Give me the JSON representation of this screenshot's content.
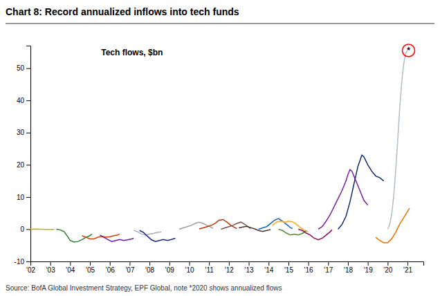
{
  "chart_data": {
    "type": "line",
    "title": "Chart 8: Record annualized inflows into tech funds",
    "subtitle": "Tech flows, $bn",
    "source": "Source: BofA Global Investment Strategy, EPF Global, note *2020  shows annualized  flows",
    "xlim": [
      2002,
      2021.8
    ],
    "ylim": [
      -10,
      57
    ],
    "yticks": [
      -10,
      0,
      10,
      20,
      30,
      40,
      50
    ],
    "xticks": [
      {
        "value": 2002,
        "label": "'02"
      },
      {
        "value": 2003,
        "label": "'03"
      },
      {
        "value": 2004,
        "label": "'04"
      },
      {
        "value": 2005,
        "label": "'05"
      },
      {
        "value": 2006,
        "label": "'06"
      },
      {
        "value": 2007,
        "label": "'07"
      },
      {
        "value": 2008,
        "label": "'08"
      },
      {
        "value": 2009,
        "label": "'09"
      },
      {
        "value": 2010,
        "label": "'10"
      },
      {
        "value": 2011,
        "label": "'11"
      },
      {
        "value": 2012,
        "label": "'12"
      },
      {
        "value": 2013,
        "label": "'13"
      },
      {
        "value": 2014,
        "label": "'14"
      },
      {
        "value": 2015,
        "label": "'15"
      },
      {
        "value": 2016,
        "label": "'16"
      },
      {
        "value": 2017,
        "label": "'17"
      },
      {
        "value": 2018,
        "label": "'18"
      },
      {
        "value": 2019,
        "label": "'19"
      },
      {
        "value": 2020,
        "label": "'20"
      },
      {
        "value": 2021,
        "label": "'21"
      }
    ],
    "grid": false,
    "annotations": [
      {
        "text": "*",
        "x": 2021.05,
        "y": 55.5,
        "color": "red"
      }
    ],
    "series": [
      {
        "color": "#b8b800",
        "x": [
          2002.0,
          2002.2,
          2002.5,
          2002.8,
          2003.2
        ],
        "values": [
          0.0,
          0.05,
          0.0,
          -0.05,
          -0.05
        ]
      },
      {
        "color": "#2e7d32",
        "x": [
          2003.3,
          2003.5,
          2003.7,
          2003.9,
          2004.0,
          2004.2,
          2004.4,
          2004.6,
          2004.8,
          2005.0,
          2005.1
        ],
        "values": [
          0.0,
          -0.2,
          -0.8,
          -2.5,
          -3.5,
          -4.0,
          -3.8,
          -3.2,
          -2.5,
          -2.0,
          -1.5
        ]
      },
      {
        "color": "#d84000",
        "x": [
          2004.6,
          2004.8,
          2005.0,
          2005.2,
          2005.4,
          2005.6,
          2005.8,
          2006.0,
          2006.2,
          2006.4,
          2006.5
        ],
        "values": [
          -2.0,
          -2.5,
          -3.0,
          -3.0,
          -2.5,
          -2.2,
          -2.5,
          -2.3,
          -2.0,
          -1.8,
          -1.5
        ]
      },
      {
        "color": "#6a1aaa",
        "x": [
          2005.5,
          2005.7,
          2005.9,
          2006.1,
          2006.3,
          2006.5,
          2006.7,
          2006.9,
          2007.1,
          2007.2
        ],
        "values": [
          -1.8,
          -2.5,
          -3.2,
          -3.8,
          -3.5,
          -3.2,
          -3.5,
          -3.3,
          -3.0,
          -2.8
        ]
      },
      {
        "color": "#aaaabc",
        "x": [
          2007.2,
          2007.4,
          2007.6,
          2007.8,
          2008.0,
          2008.2,
          2008.4,
          2008.6
        ],
        "values": [
          -0.3,
          -0.8,
          -1.5,
          -1.8,
          -1.5,
          -1.3,
          -1.0,
          -0.8
        ]
      },
      {
        "color": "#1a237e",
        "x": [
          2007.5,
          2007.7,
          2007.9,
          2008.1,
          2008.3,
          2008.5,
          2008.7,
          2008.9,
          2009.1,
          2009.3
        ],
        "values": [
          -0.4,
          -1.0,
          -2.2,
          -3.3,
          -3.8,
          -3.5,
          -3.2,
          -3.5,
          -3.2,
          -2.8
        ]
      },
      {
        "color": "#9e9e9e",
        "x": [
          2009.5,
          2009.7,
          2009.9,
          2010.1,
          2010.3,
          2010.5,
          2010.7,
          2010.9,
          2011.1,
          2011.2
        ],
        "values": [
          0.0,
          0.4,
          0.8,
          1.2,
          1.8,
          2.2,
          1.8,
          1.2,
          0.6,
          0.3
        ]
      },
      {
        "color": "#bf360c",
        "x": [
          2010.5,
          2010.7,
          2010.9,
          2011.1,
          2011.3,
          2011.5,
          2011.7,
          2011.9,
          2012.1,
          2012.3,
          2012.4
        ],
        "values": [
          0.1,
          0.4,
          0.8,
          1.2,
          1.8,
          2.8,
          3.0,
          2.2,
          1.2,
          0.5,
          0.2
        ]
      },
      {
        "color": "#795548",
        "x": [
          2011.6,
          2011.8,
          2012.0,
          2012.2,
          2012.4,
          2012.6,
          2012.8,
          2013.0,
          2013.1
        ],
        "values": [
          0.0,
          0.4,
          0.8,
          1.2,
          1.8,
          2.2,
          1.5,
          0.6,
          0.2
        ]
      },
      {
        "color": "#4e342e",
        "x": [
          2012.5,
          2012.7,
          2012.9,
          2013.1,
          2013.3,
          2013.5,
          2013.7,
          2013.9,
          2014.1
        ],
        "values": [
          0.4,
          0.7,
          0.9,
          0.5,
          0.1,
          -0.4,
          -0.7,
          -0.4,
          -0.1
        ]
      },
      {
        "color": "#1565c0",
        "x": [
          2013.5,
          2013.7,
          2013.9,
          2014.1,
          2014.3,
          2014.5,
          2014.7,
          2014.9,
          2015.1,
          2015.2
        ],
        "values": [
          0.0,
          0.4,
          0.8,
          1.8,
          2.8,
          3.3,
          2.5,
          1.5,
          0.5,
          0.2
        ]
      },
      {
        "color": "#f9a825",
        "x": [
          2014.2,
          2014.4,
          2014.6,
          2014.8,
          2015.0,
          2015.2,
          2015.4,
          2015.6,
          2015.8,
          2016.0
        ],
        "values": [
          1.2,
          2.2,
          2.5,
          2.2,
          2.5,
          2.3,
          1.5,
          0.5,
          -0.3,
          -0.8
        ]
      },
      {
        "color": "#558b2f",
        "x": [
          2014.5,
          2014.7,
          2014.9,
          2015.1,
          2015.3,
          2015.5,
          2015.7,
          2015.9
        ],
        "values": [
          0.0,
          -0.4,
          -1.2,
          -1.8,
          -1.5,
          -1.8,
          -1.3,
          -0.5
        ]
      },
      {
        "color": "#880e4f",
        "x": [
          2015.5,
          2015.7,
          2015.9,
          2016.1,
          2016.3,
          2016.5,
          2016.7,
          2016.9,
          2017.1,
          2017.2
        ],
        "values": [
          0.0,
          -0.4,
          -1.2,
          -1.8,
          -2.8,
          -3.3,
          -2.8,
          -1.8,
          -0.8,
          -0.2
        ]
      },
      {
        "color": "#7b1fa2",
        "x": [
          2016.5,
          2016.7,
          2016.9,
          2017.1,
          2017.3,
          2017.5,
          2017.7,
          2017.9,
          2018.0,
          2018.1,
          2018.2,
          2018.4,
          2018.6,
          2018.8,
          2019.0
        ],
        "values": [
          0.0,
          0.8,
          2.5,
          4.5,
          7.0,
          9.5,
          12.0,
          15.0,
          17.0,
          18.5,
          18.0,
          15.0,
          12.0,
          9.0,
          7.5
        ]
      },
      {
        "color": "#0d2b6e",
        "x": [
          2017.5,
          2017.7,
          2017.9,
          2018.1,
          2018.3,
          2018.5,
          2018.7,
          2018.8,
          2019.0,
          2019.2,
          2019.4,
          2019.6,
          2019.8
        ],
        "values": [
          0.0,
          1.5,
          4.0,
          8.5,
          14.0,
          19.5,
          23.0,
          22.5,
          20.0,
          18.0,
          16.5,
          16.0,
          15.0
        ]
      },
      {
        "color": "#e57200",
        "x": [
          2019.4,
          2019.6,
          2019.8,
          2020.0,
          2020.2,
          2020.4,
          2020.6,
          2020.8,
          2021.0,
          2021.1
        ],
        "values": [
          -2.5,
          -3.5,
          -4.2,
          -4.2,
          -3.0,
          -1.0,
          1.5,
          3.5,
          5.5,
          6.5
        ]
      },
      {
        "color": "#b0bec5",
        "x": [
          2020.0,
          2020.1,
          2020.2,
          2020.3,
          2020.4,
          2020.5,
          2020.6,
          2020.7,
          2020.8,
          2020.9,
          2021.0
        ],
        "values": [
          0.0,
          1.5,
          4.5,
          10.0,
          18.0,
          27.0,
          37.0,
          45.0,
          51.0,
          54.5,
          55.5
        ]
      }
    ]
  }
}
